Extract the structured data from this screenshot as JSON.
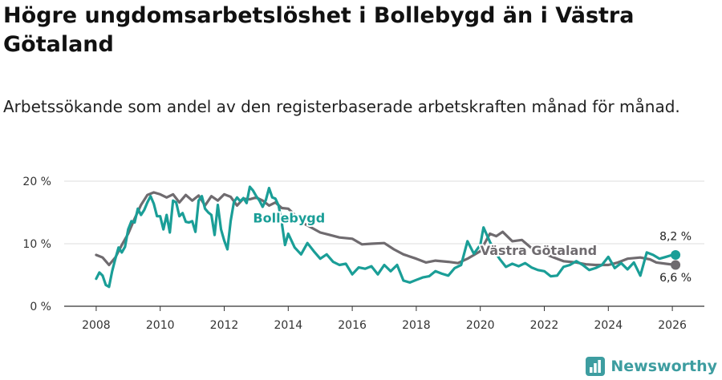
{
  "chart_data": {
    "type": "line",
    "title": "Högre ungdomsarbetslöshet i Bollebygd än i Västra Götaland",
    "subtitle": "Arbetssökande som andel av den registerbaserade arbetskraften månad för månad.",
    "xlabel": "",
    "ylabel": "",
    "xlim": [
      2007.0,
      2027.0
    ],
    "ylim": [
      0,
      20
    ],
    "x_ticks": [
      2008,
      2010,
      2012,
      2014,
      2016,
      2018,
      2020,
      2022,
      2024,
      2026
    ],
    "x_tick_labels": [
      "2008",
      "2010",
      "2012",
      "2014",
      "2016",
      "2018",
      "2020",
      "2022",
      "2024",
      "2026"
    ],
    "y_ticks": [
      0,
      10,
      20
    ],
    "y_tick_labels": [
      "0 %",
      "10 %",
      "20 %"
    ],
    "grid": true,
    "series": [
      {
        "name": "Västra Götaland",
        "color": "#6f6b6f",
        "x": [
          2008.0,
          2008.2,
          2008.4,
          2008.6,
          2008.8,
          2009.0,
          2009.2,
          2009.4,
          2009.6,
          2009.8,
          2010.0,
          2010.2,
          2010.4,
          2010.6,
          2010.8,
          2011.0,
          2011.2,
          2011.4,
          2011.6,
          2011.8,
          2012.0,
          2012.2,
          2012.4,
          2012.6,
          2012.8,
          2013.0,
          2013.2,
          2013.4,
          2013.6,
          2013.8,
          2014.0,
          2014.5,
          2015.0,
          2015.3,
          2015.6,
          2016.0,
          2016.3,
          2016.6,
          2017.0,
          2017.3,
          2017.6,
          2018.0,
          2018.3,
          2018.6,
          2019.0,
          2019.3,
          2019.6,
          2020.0,
          2020.3,
          2020.5,
          2020.7,
          2021.0,
          2021.3,
          2021.6,
          2022.0,
          2022.3,
          2022.6,
          2023.0,
          2023.3,
          2023.6,
          2024.0,
          2024.3,
          2024.6,
          2025.0,
          2025.3,
          2025.5,
          2025.8,
          2026.1
        ],
        "values": [
          8.2,
          7.8,
          6.6,
          7.8,
          9.8,
          11.6,
          14.0,
          16.2,
          17.8,
          18.2,
          17.9,
          17.4,
          17.9,
          16.6,
          17.8,
          16.9,
          17.7,
          16.1,
          17.6,
          16.9,
          17.9,
          17.5,
          16.1,
          17.2,
          17.1,
          17.4,
          16.9,
          16.1,
          16.6,
          15.7,
          15.6,
          13.2,
          11.8,
          11.4,
          11.0,
          10.8,
          9.9,
          10.0,
          10.1,
          9.1,
          8.3,
          7.6,
          7.0,
          7.3,
          7.1,
          6.9,
          7.6,
          8.8,
          11.6,
          11.2,
          11.9,
          10.4,
          10.6,
          9.3,
          8.4,
          7.8,
          7.2,
          7.0,
          6.7,
          6.6,
          6.6,
          7.0,
          7.6,
          7.8,
          7.5,
          7.0,
          6.8,
          6.6
        ]
      },
      {
        "name": "Bollebygd",
        "color": "#1a9e97",
        "x": [
          2008.0,
          2008.1,
          2008.2,
          2008.3,
          2008.4,
          2008.5,
          2008.6,
          2008.7,
          2008.8,
          2008.9,
          2009.0,
          2009.1,
          2009.2,
          2009.3,
          2009.4,
          2009.5,
          2009.6,
          2009.7,
          2009.8,
          2009.9,
          2010.0,
          2010.1,
          2010.2,
          2010.3,
          2010.4,
          2010.5,
          2010.6,
          2010.7,
          2010.8,
          2010.9,
          2011.0,
          2011.1,
          2011.2,
          2011.3,
          2011.4,
          2011.5,
          2011.6,
          2011.7,
          2011.8,
          2011.9,
          2012.0,
          2012.1,
          2012.2,
          2012.3,
          2012.4,
          2012.5,
          2012.6,
          2012.7,
          2012.8,
          2012.9,
          2013.0,
          2013.1,
          2013.2,
          2013.3,
          2013.4,
          2013.5,
          2013.6,
          2013.7,
          2013.8,
          2013.9,
          2014.0,
          2014.2,
          2014.4,
          2014.6,
          2014.8,
          2015.0,
          2015.2,
          2015.4,
          2015.6,
          2015.8,
          2016.0,
          2016.2,
          2016.4,
          2016.6,
          2016.8,
          2017.0,
          2017.2,
          2017.4,
          2017.6,
          2017.8,
          2018.0,
          2018.2,
          2018.4,
          2018.6,
          2018.8,
          2019.0,
          2019.2,
          2019.4,
          2019.6,
          2019.8,
          2020.0,
          2020.1,
          2020.3,
          2020.5,
          2020.6,
          2020.8,
          2021.0,
          2021.2,
          2021.4,
          2021.6,
          2021.8,
          2022.0,
          2022.2,
          2022.4,
          2022.6,
          2022.8,
          2023.0,
          2023.2,
          2023.4,
          2023.6,
          2023.8,
          2024.0,
          2024.2,
          2024.4,
          2024.6,
          2024.8,
          2025.0,
          2025.2,
          2025.4,
          2025.6,
          2025.8,
          2026.0,
          2026.1
        ],
        "values": [
          4.4,
          5.4,
          4.9,
          3.4,
          3.1,
          5.6,
          7.6,
          9.4,
          8.6,
          9.5,
          12.3,
          13.6,
          13.4,
          15.6,
          14.6,
          15.4,
          16.6,
          17.6,
          16.4,
          14.4,
          14.4,
          12.3,
          14.6,
          11.8,
          16.9,
          16.6,
          14.4,
          14.9,
          13.5,
          13.4,
          13.6,
          11.9,
          16.9,
          17.6,
          15.6,
          15.0,
          14.6,
          11.4,
          16.2,
          12.3,
          10.5,
          9.1,
          13.6,
          16.6,
          17.4,
          16.8,
          17.3,
          16.5,
          19.1,
          18.5,
          17.6,
          16.9,
          15.9,
          17.0,
          18.9,
          17.4,
          17.2,
          16.1,
          13.3,
          9.8,
          11.6,
          9.4,
          8.3,
          10.1,
          8.8,
          7.6,
          8.3,
          7.1,
          6.6,
          6.8,
          5.1,
          6.2,
          6.0,
          6.4,
          5.1,
          6.6,
          5.6,
          6.6,
          4.1,
          3.8,
          4.2,
          4.6,
          4.8,
          5.6,
          5.2,
          4.9,
          6.1,
          6.6,
          10.4,
          8.4,
          9.8,
          12.6,
          10.3,
          8.4,
          7.6,
          6.3,
          6.8,
          6.4,
          6.9,
          6.2,
          5.8,
          5.6,
          4.8,
          4.9,
          6.3,
          6.6,
          7.2,
          6.6,
          5.8,
          6.1,
          6.6,
          7.9,
          6.1,
          6.9,
          5.9,
          7.0,
          4.9,
          8.6,
          8.2,
          7.6,
          7.9,
          8.2,
          8.2
        ]
      }
    ],
    "annotations": [
      {
        "series": "Bollebygd",
        "text": "Bollebygd",
        "x": 2012.9,
        "y": 13.4
      },
      {
        "series": "Västra Götaland",
        "text": "Västra Götaland",
        "x": 2020.0,
        "y": 8.2
      },
      {
        "series": "Bollebygd",
        "text": "8,2 %",
        "x": 2026.1,
        "y": 10.6
      },
      {
        "series": "Västra Götaland",
        "text": "6,6 %",
        "x": 2026.1,
        "y": 4.0
      }
    ]
  },
  "brand": {
    "name": "Newsworthy",
    "color": "#3d9da0"
  }
}
